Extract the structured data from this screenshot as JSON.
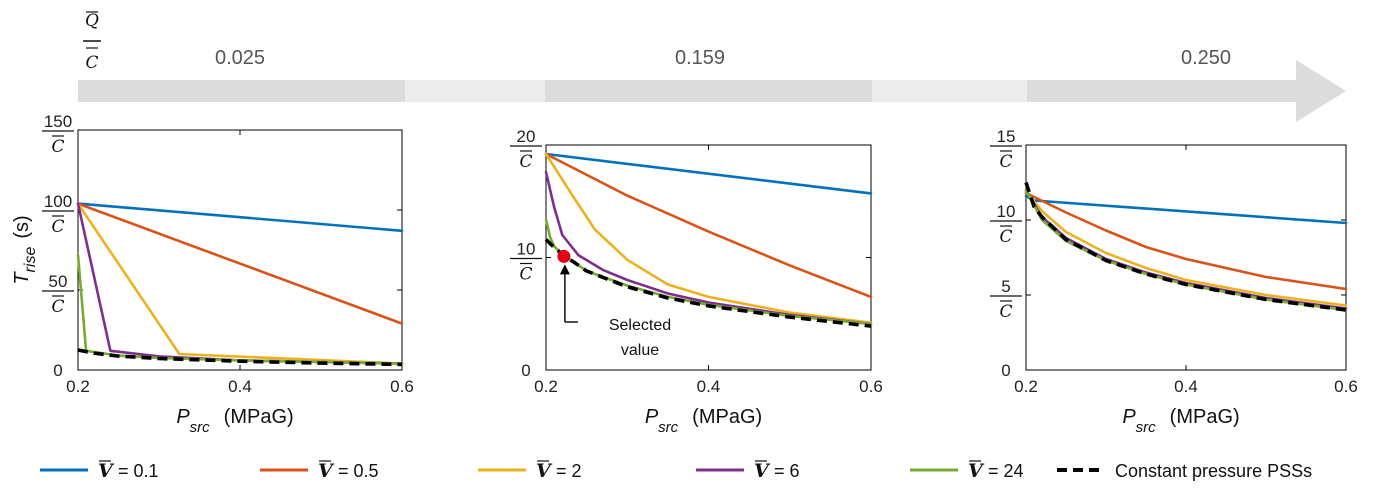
{
  "band": {
    "header_num": "Q",
    "header_den": "C",
    "values": [
      "0.025",
      "0.159",
      "0.250"
    ]
  },
  "chart_data": [
    {
      "type": "line",
      "panel": "left",
      "xlabel_main": "P",
      "xlabel_sub": "src",
      "xlabel_unit": "(MPaG)",
      "ylabel_main": "T",
      "ylabel_sub": "rise",
      "ylabel_unit": "(s)",
      "xlim": [
        0.2,
        0.6
      ],
      "ylim": [
        0,
        150
      ],
      "xticks": [
        0.2,
        0.4,
        0.6
      ],
      "xtick_labels": [
        "0.2",
        "0.4",
        "0.6"
      ],
      "yticks": [
        0,
        50,
        100,
        150
      ],
      "ytick_labels": [
        {
          "num": "0",
          "den": ""
        },
        {
          "num": "50",
          "den": "C"
        },
        {
          "num": "100",
          "den": "C"
        },
        {
          "num": "150",
          "den": "C"
        }
      ],
      "series": [
        {
          "name": "V = 0.1",
          "color": "#0072BD",
          "dash": false,
          "x": [
            0.2,
            0.6
          ],
          "y": [
            104,
            87
          ]
        },
        {
          "name": "V = 0.5",
          "color": "#D95319",
          "dash": false,
          "x": [
            0.2,
            0.6
          ],
          "y": [
            104,
            29
          ]
        },
        {
          "name": "V = 2",
          "color": "#EDB120",
          "dash": false,
          "x": [
            0.2,
            0.325,
            0.6
          ],
          "y": [
            104,
            10,
            4
          ]
        },
        {
          "name": "V = 6",
          "color": "#7E2F8E",
          "dash": false,
          "x": [
            0.2,
            0.24,
            0.3,
            0.4,
            0.6
          ],
          "y": [
            104,
            12,
            8.5,
            6,
            4
          ]
        },
        {
          "name": "V = 24",
          "color": "#77AC30",
          "dash": false,
          "x": [
            0.2,
            0.21,
            0.25,
            0.3,
            0.4,
            0.6
          ],
          "y": [
            72,
            12,
            9,
            7.5,
            6,
            4
          ]
        },
        {
          "name": "Constant pressure PSSs",
          "color": "#000000",
          "dash": true,
          "x": [
            0.2,
            0.22,
            0.25,
            0.3,
            0.4,
            0.5,
            0.6
          ],
          "y": [
            12.5,
            10.5,
            8.7,
            7.2,
            5.5,
            4.3,
            3.5
          ]
        }
      ]
    },
    {
      "type": "line",
      "panel": "middle",
      "xlabel_main": "P",
      "xlabel_sub": "src",
      "xlabel_unit": "(MPaG)",
      "xlim": [
        0.2,
        0.6
      ],
      "ylim": [
        0,
        20
      ],
      "xticks": [
        0.2,
        0.4,
        0.6
      ],
      "xtick_labels": [
        "0.2",
        "0.4",
        "0.6"
      ],
      "yticks": [
        0,
        10,
        20
      ],
      "ytick_labels": [
        {
          "num": "0",
          "den": ""
        },
        {
          "num": "10",
          "den": "C"
        },
        {
          "num": "20",
          "den": "C"
        }
      ],
      "annotation": {
        "text_line1": "Selected",
        "text_line2": "value",
        "x": 0.222,
        "y": 10.1,
        "marker_color": "#E3001B"
      },
      "series": [
        {
          "name": "V = 0.1",
          "color": "#0072BD",
          "dash": false,
          "x": [
            0.2,
            0.6
          ],
          "y": [
            19.2,
            15.7
          ]
        },
        {
          "name": "V = 0.5",
          "color": "#D95319",
          "dash": false,
          "x": [
            0.2,
            0.3,
            0.4,
            0.5,
            0.6
          ],
          "y": [
            19.2,
            15.5,
            12.3,
            9.3,
            6.5
          ]
        },
        {
          "name": "V = 2",
          "color": "#EDB120",
          "dash": false,
          "x": [
            0.2,
            0.23,
            0.26,
            0.3,
            0.35,
            0.4,
            0.5,
            0.6
          ],
          "y": [
            19.2,
            15.8,
            12.5,
            9.8,
            7.6,
            6.5,
            5.1,
            4.2
          ]
        },
        {
          "name": "V = 6",
          "color": "#7E2F8E",
          "dash": false,
          "x": [
            0.2,
            0.21,
            0.22,
            0.24,
            0.27,
            0.3,
            0.35,
            0.4,
            0.5,
            0.6
          ],
          "y": [
            17.6,
            14.5,
            12.0,
            10.2,
            8.9,
            8.0,
            6.8,
            6.0,
            4.9,
            4.1
          ]
        },
        {
          "name": "V = 24",
          "color": "#77AC30",
          "dash": false,
          "x": [
            0.2,
            0.205,
            0.21,
            0.22,
            0.25,
            0.3,
            0.35,
            0.4,
            0.5,
            0.6
          ],
          "y": [
            13.4,
            11.8,
            11.0,
            10.3,
            8.8,
            7.5,
            6.5,
            5.8,
            4.8,
            4.1
          ]
        },
        {
          "name": "Constant pressure PSSs",
          "color": "#000000",
          "dash": true,
          "x": [
            0.2,
            0.21,
            0.22,
            0.25,
            0.3,
            0.35,
            0.4,
            0.5,
            0.6
          ],
          "y": [
            11.6,
            10.9,
            10.3,
            8.8,
            7.4,
            6.4,
            5.7,
            4.7,
            3.9
          ]
        }
      ]
    },
    {
      "type": "line",
      "panel": "right",
      "xlabel_main": "P",
      "xlabel_sub": "src",
      "xlabel_unit": "(MPaG)",
      "xlim": [
        0.2,
        0.6
      ],
      "ylim": [
        0,
        15
      ],
      "xticks": [
        0.2,
        0.4,
        0.6
      ],
      "xtick_labels": [
        "0.2",
        "0.4",
        "0.6"
      ],
      "yticks": [
        0,
        5,
        10,
        15
      ],
      "ytick_labels": [
        {
          "num": "0",
          "den": ""
        },
        {
          "num": "5",
          "den": "C"
        },
        {
          "num": "10",
          "den": "C"
        },
        {
          "num": "15",
          "den": "C"
        }
      ],
      "series": [
        {
          "name": "V = 0.1",
          "color": "#0072BD",
          "dash": false,
          "x": [
            0.2,
            0.21,
            0.6
          ],
          "y": [
            11.6,
            11.3,
            9.8
          ]
        },
        {
          "name": "V = 0.5",
          "color": "#D95319",
          "dash": false,
          "x": [
            0.2,
            0.25,
            0.3,
            0.35,
            0.4,
            0.5,
            0.6
          ],
          "y": [
            11.8,
            10.5,
            9.3,
            8.2,
            7.4,
            6.2,
            5.4
          ]
        },
        {
          "name": "V = 2",
          "color": "#EDB120",
          "dash": false,
          "x": [
            0.2,
            0.22,
            0.25,
            0.3,
            0.35,
            0.4,
            0.5,
            0.6
          ],
          "y": [
            11.9,
            10.6,
            9.2,
            7.8,
            6.8,
            6.0,
            5.0,
            4.3
          ]
        },
        {
          "name": "V = 6",
          "color": "#7E2F8E",
          "dash": false,
          "x": [
            0.2,
            0.22,
            0.25,
            0.3,
            0.35,
            0.4,
            0.5,
            0.6
          ],
          "y": [
            12.0,
            10.2,
            8.8,
            7.4,
            6.5,
            5.8,
            4.8,
            4.1
          ]
        },
        {
          "name": "V = 24",
          "color": "#77AC30",
          "dash": false,
          "x": [
            0.2,
            0.22,
            0.25,
            0.3,
            0.35,
            0.4,
            0.5,
            0.6
          ],
          "y": [
            12.0,
            10.0,
            8.6,
            7.3,
            6.4,
            5.7,
            4.7,
            4.0
          ]
        },
        {
          "name": "Constant pressure PSSs",
          "color": "#000000",
          "dash": true,
          "x": [
            0.2,
            0.21,
            0.22,
            0.25,
            0.3,
            0.35,
            0.4,
            0.5,
            0.6
          ],
          "y": [
            12.5,
            10.9,
            10.2,
            8.7,
            7.3,
            6.4,
            5.7,
            4.7,
            4.0
          ]
        }
      ]
    }
  ],
  "legend": {
    "symbol": "V",
    "items": [
      {
        "prefix": "V",
        "text": "= 0.1",
        "color": "#0072BD",
        "dash": false
      },
      {
        "prefix": "V",
        "text": "= 0.5",
        "color": "#D95319",
        "dash": false
      },
      {
        "prefix": "V",
        "text": "= 2",
        "color": "#EDB120",
        "dash": false
      },
      {
        "prefix": "V",
        "text": "= 6",
        "color": "#7E2F8E",
        "dash": false
      },
      {
        "prefix": "V",
        "text": "= 24",
        "color": "#77AC30",
        "dash": false
      },
      {
        "prefix": "",
        "text": "Constant pressure PSSs",
        "color": "#000000",
        "dash": true
      }
    ]
  }
}
